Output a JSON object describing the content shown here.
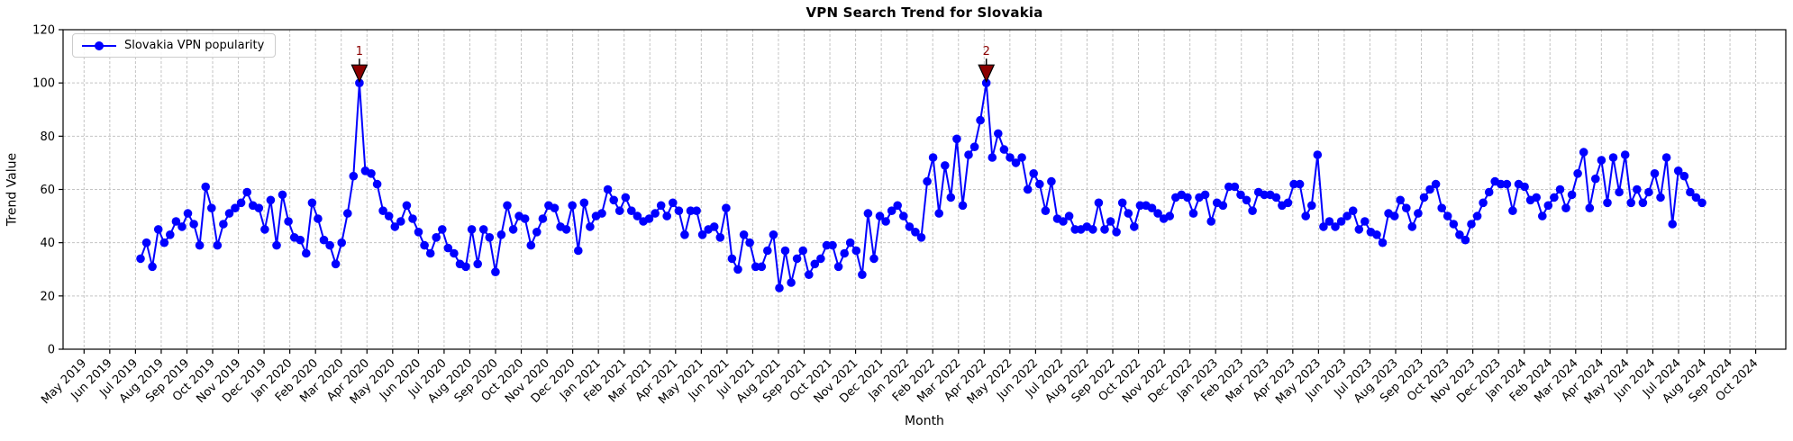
{
  "page": {
    "background": "#ffffff"
  },
  "header": {
    "title": "VPN Search Trend for Slovakia"
  },
  "axes": {
    "xlabel": "Month",
    "ylabel": "Trend Value"
  },
  "legend": {
    "items": [
      {
        "label": "Slovakia VPN popularity",
        "marker": "circle-on-line",
        "color": "#0000ff"
      }
    ]
  },
  "colors": {
    "line": "#0000ff",
    "marker": "#0000ff",
    "annotation": "#8b0000",
    "grid": "#c4c4c4",
    "axis": "#000000"
  },
  "chart_data": {
    "type": "line",
    "title": "VPN Search Trend for Slovakia",
    "xlabel": "Month",
    "ylabel": "Trend Value",
    "ylim": [
      0,
      120
    ],
    "y_ticks": [
      0,
      20,
      40,
      60,
      80,
      100,
      120
    ],
    "x_tick_labels": [
      "May 2019",
      "Jun 2019",
      "Jul 2019",
      "Aug 2019",
      "Sep 2019",
      "Oct 2019",
      "Nov 2019",
      "Dec 2019",
      "Jan 2020",
      "Feb 2020",
      "Mar 2020",
      "Apr 2020",
      "May 2020",
      "Jun 2020",
      "Jul 2020",
      "Aug 2020",
      "Sep 2020",
      "Oct 2020",
      "Nov 2020",
      "Dec 2020",
      "Jan 2021",
      "Feb 2021",
      "Mar 2021",
      "Apr 2021",
      "May 2021",
      "Jun 2021",
      "Jul 2021",
      "Aug 2021",
      "Sep 2021",
      "Oct 2021",
      "Nov 2021",
      "Dec 2021",
      "Jan 2022",
      "Feb 2022",
      "Mar 2022",
      "Apr 2022",
      "May 2022",
      "Jun 2022",
      "Jul 2022",
      "Aug 2022",
      "Sep 2022",
      "Oct 2022",
      "Nov 2022",
      "Dec 2022",
      "Jan 2023",
      "Feb 2023",
      "Mar 2023",
      "Apr 2023",
      "May 2023",
      "Jun 2023",
      "Jul 2023",
      "Aug 2023",
      "Sep 2023",
      "Oct 2023",
      "Nov 2023",
      "Dec 2023",
      "Jan 2024",
      "Feb 2024",
      "Mar 2024",
      "Apr 2024",
      "May 2024",
      "Jun 2024",
      "Jul 2024",
      "Aug 2024",
      "Sep 2024",
      "Oct 2024"
    ],
    "grid": true,
    "grid_style": "dashed",
    "legend_position": "upper left",
    "marker": "o",
    "cadence": "weekly",
    "data_range": {
      "first_point": "early Jul 2019",
      "last_point": "early Aug 2024"
    },
    "series": [
      {
        "name": "Slovakia VPN popularity",
        "color": "#0000ff",
        "values": [
          34,
          40,
          31,
          45,
          40,
          43,
          48,
          46,
          51,
          47,
          39,
          61,
          53,
          39,
          47,
          51,
          53,
          55,
          59,
          54,
          53,
          45,
          56,
          39,
          58,
          48,
          42,
          41,
          36,
          55,
          49,
          41,
          39,
          32,
          40,
          51,
          65,
          100,
          67,
          66,
          62,
          52,
          50,
          46,
          48,
          54,
          49,
          44,
          39,
          36,
          42,
          45,
          38,
          36,
          32,
          31,
          45,
          32,
          45,
          42,
          29,
          43,
          54,
          45,
          50,
          49,
          39,
          44,
          49,
          54,
          53,
          46,
          45,
          54,
          37,
          55,
          46,
          50,
          51,
          60,
          56,
          52,
          57,
          52,
          50,
          48,
          49,
          51,
          54,
          50,
          55,
          52,
          43,
          52,
          52,
          43,
          45,
          46,
          42,
          53,
          34,
          30,
          43,
          40,
          31,
          31,
          37,
          43,
          23,
          37,
          25,
          34,
          37,
          28,
          32,
          34,
          39,
          39,
          31,
          36,
          40,
          37,
          28,
          51,
          34,
          50,
          48,
          52,
          54,
          50,
          46,
          44,
          42,
          63,
          72,
          51,
          69,
          57,
          79,
          54,
          73,
          76,
          86,
          100,
          72,
          81,
          75,
          72,
          70,
          72,
          60,
          66,
          62,
          52,
          63,
          49,
          48,
          50,
          45,
          45,
          46,
          45,
          55,
          45,
          48,
          44,
          55,
          51,
          46,
          54,
          54,
          53,
          51,
          49,
          50,
          57,
          58,
          57,
          51,
          57,
          58,
          48,
          55,
          54,
          61,
          61,
          58,
          56,
          52,
          59,
          58,
          58,
          57,
          54,
          55,
          62,
          62,
          50,
          54,
          73,
          46,
          48,
          46,
          48,
          50,
          52,
          45,
          48,
          44,
          43,
          40,
          51,
          50,
          56,
          53,
          46,
          51,
          57,
          60,
          62,
          53,
          50,
          47,
          43,
          41,
          47,
          50,
          55,
          59,
          63,
          62,
          62,
          52,
          62,
          61,
          56,
          57,
          50,
          54,
          57,
          60,
          53,
          58,
          66,
          74,
          53,
          64,
          71,
          55,
          72,
          59,
          73,
          55,
          60,
          55,
          59,
          66,
          57,
          72,
          47,
          67,
          65,
          59,
          57,
          55
        ]
      }
    ],
    "annotations": [
      {
        "label": "1",
        "point_index": 37,
        "value": 100,
        "marker": "down-triangle",
        "color": "#8b0000"
      },
      {
        "label": "2",
        "point_index": 143,
        "value": 100,
        "marker": "down-triangle",
        "color": "#8b0000"
      }
    ]
  }
}
